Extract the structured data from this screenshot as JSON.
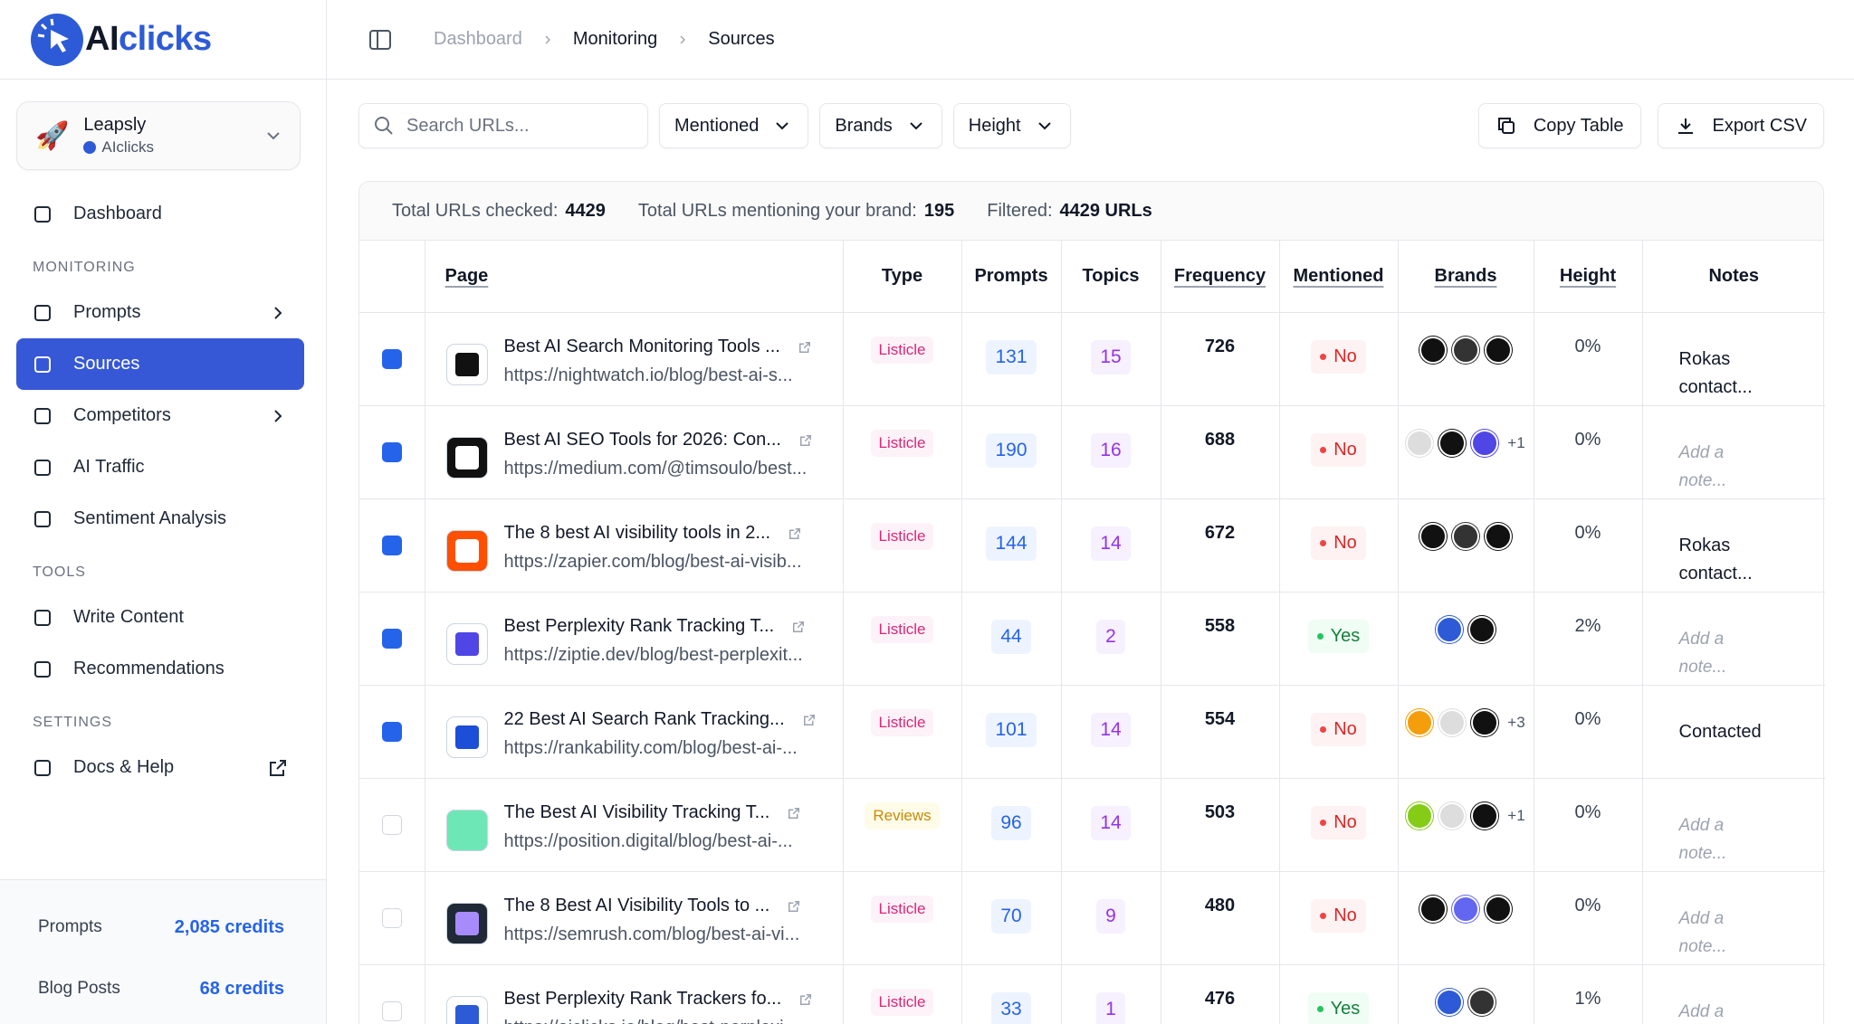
{
  "brand": {
    "prefix": "AI",
    "suffix": "clicks"
  },
  "breadcrumb": [
    "Dashboard",
    "Monitoring",
    "Sources"
  ],
  "workspace": {
    "name": "Leapsly",
    "org": "AIclicks"
  },
  "nav": {
    "top": [
      {
        "label": "Dashboard"
      }
    ],
    "sections": [
      {
        "label": "MONITORING",
        "items": [
          {
            "label": "Prompts",
            "submenu": true
          },
          {
            "label": "Sources",
            "active": true
          },
          {
            "label": "Competitors",
            "submenu": true
          },
          {
            "label": "AI Traffic"
          },
          {
            "label": "Sentiment Analysis"
          }
        ]
      },
      {
        "label": "TOOLS",
        "items": [
          {
            "label": "Write Content"
          },
          {
            "label": "Recommendations"
          }
        ]
      },
      {
        "label": "SETTINGS",
        "items": [
          {
            "label": "Docs & Help",
            "external": true
          }
        ]
      }
    ]
  },
  "credits": [
    {
      "label": "Prompts",
      "value": "2,085 credits"
    },
    {
      "label": "Blog Posts",
      "value": "68 credits"
    }
  ],
  "toolbar": {
    "search_placeholder": "Search URLs...",
    "filters": [
      "Mentioned",
      "Brands",
      "Height"
    ],
    "actions": [
      "Copy Table",
      "Export CSV"
    ]
  },
  "summary": [
    {
      "label": "Total URLs checked:",
      "value": 4429
    },
    {
      "label": "Total URLs mentioning your brand:",
      "value": 195
    },
    {
      "label": "Filtered:",
      "value": "4429 URLs"
    }
  ],
  "table": {
    "note_placeholder": "Add a note...",
    "columns": [
      {
        "label": "Page",
        "sortable": true
      },
      {
        "label": "Type"
      },
      {
        "label": "Prompts"
      },
      {
        "label": "Topics"
      },
      {
        "label": "Frequency",
        "sortable": true
      },
      {
        "label": "Mentioned",
        "sortable": true
      },
      {
        "label": "Brands",
        "sortable": true
      },
      {
        "label": "Height",
        "sortable": true
      },
      {
        "label": "Notes"
      }
    ],
    "rows": [
      {
        "checked": true,
        "title": "Best AI Search Monitoring Tools ...",
        "url": "https://nightwatch.io/blog/best-ai-s...",
        "type": "Listicle",
        "prompts": 131,
        "topics": 15,
        "frequency": 726,
        "mentioned": "No",
        "brands_more": null,
        "height": "0%",
        "note": "Rokas contact..."
      },
      {
        "checked": true,
        "title": "Best AI SEO Tools for 2026: Con...",
        "url": "https://medium.com/@timsoulo/best...",
        "type": "Listicle",
        "prompts": 190,
        "topics": 16,
        "frequency": 688,
        "mentioned": "No",
        "brands_more": "+1",
        "height": "0%",
        "note": null
      },
      {
        "checked": true,
        "title": "The 8 best AI visibility tools in 2...",
        "url": "https://zapier.com/blog/best-ai-visib...",
        "type": "Listicle",
        "prompts": 144,
        "topics": 14,
        "frequency": 672,
        "mentioned": "No",
        "brands_more": null,
        "height": "0%",
        "note": "Rokas contact..."
      },
      {
        "checked": true,
        "title": "Best Perplexity Rank Tracking T...",
        "url": "https://ziptie.dev/blog/best-perplexit...",
        "type": "Listicle",
        "prompts": 44,
        "topics": 2,
        "frequency": 558,
        "mentioned": "Yes",
        "brands_more": null,
        "height": "2%",
        "note": null
      },
      {
        "checked": true,
        "title": "22 Best AI Search Rank Tracking...",
        "url": "https://rankability.com/blog/best-ai-...",
        "type": "Listicle",
        "prompts": 101,
        "topics": 14,
        "frequency": 554,
        "mentioned": "No",
        "brands_more": "+3",
        "height": "0%",
        "note": "Contacted"
      },
      {
        "checked": false,
        "title": "The Best AI Visibility Tracking T...",
        "url": "https://position.digital/blog/best-ai-...",
        "type": "Reviews",
        "prompts": 96,
        "topics": 14,
        "frequency": 503,
        "mentioned": "No",
        "brands_more": "+1",
        "height": "0%",
        "note": null
      },
      {
        "checked": false,
        "title": "The 8 Best AI Visibility Tools to ...",
        "url": "https://semrush.com/blog/best-ai-vi...",
        "type": "Listicle",
        "prompts": 70,
        "topics": 9,
        "frequency": 480,
        "mentioned": "No",
        "brands_more": null,
        "height": "0%",
        "note": null
      },
      {
        "checked": false,
        "title": "Best Perplexity Rank Trackers fo...",
        "url": "https://aiclicks.io/blog/best-perplexi...",
        "type": "Listicle",
        "prompts": 33,
        "topics": 1,
        "frequency": 476,
        "mentioned": "Yes",
        "brands_more": null,
        "height": "1%",
        "note": null
      }
    ]
  }
}
